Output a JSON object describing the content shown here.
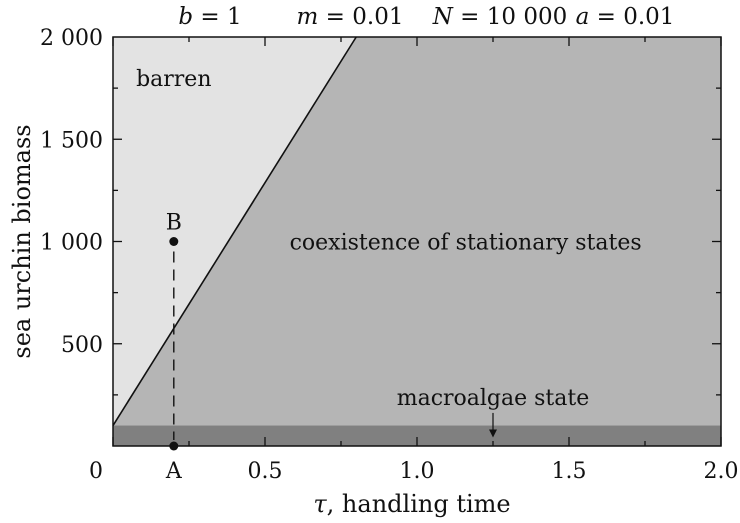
{
  "chart_data": {
    "type": "area",
    "parameters": [
      {
        "symbol": "b",
        "value": "1"
      },
      {
        "symbol": "m",
        "value": "0.01"
      },
      {
        "symbol": "N",
        "value": "10 000"
      },
      {
        "symbol": "a",
        "value": "0.01"
      }
    ],
    "xlabel_symbol": "τ",
    "xlabel_rest": ", handling time",
    "ylabel": "sea urchin biomass",
    "xlim": [
      0,
      2.0
    ],
    "ylim": [
      0,
      2000
    ],
    "x_ticks": [
      0,
      0.5,
      1.0,
      1.5,
      2.0
    ],
    "x_tick_labels": [
      "0",
      "0.5",
      "1.0",
      "1.5",
      "2.0"
    ],
    "y_ticks": [
      500,
      1000,
      1500,
      2000
    ],
    "y_tick_labels": [
      "500",
      "1 000",
      "1 500",
      "2 000"
    ],
    "boundary_line": {
      "x": [
        0,
        0.8
      ],
      "y": [
        100,
        2000
      ]
    },
    "macroalgae_band": {
      "y": [
        0,
        100
      ]
    },
    "regions": [
      {
        "label": "barren",
        "x": 0.2,
        "y": 1800
      },
      {
        "label": "coexistence of stationary states",
        "x": 1.16,
        "y": 1000
      },
      {
        "label": "macroalgae state",
        "x": 1.25,
        "y": 240
      }
    ],
    "points": [
      {
        "label": "A",
        "x": 0.2,
        "y": 0
      },
      {
        "label": "B",
        "x": 0.2,
        "y": 1000
      }
    ],
    "colors": {
      "barren": "#e3e3e3",
      "coexistence": "#b5b5b5",
      "macroalgae": "#808080",
      "line": "#111111",
      "frame": "#111111"
    },
    "grid": false
  }
}
